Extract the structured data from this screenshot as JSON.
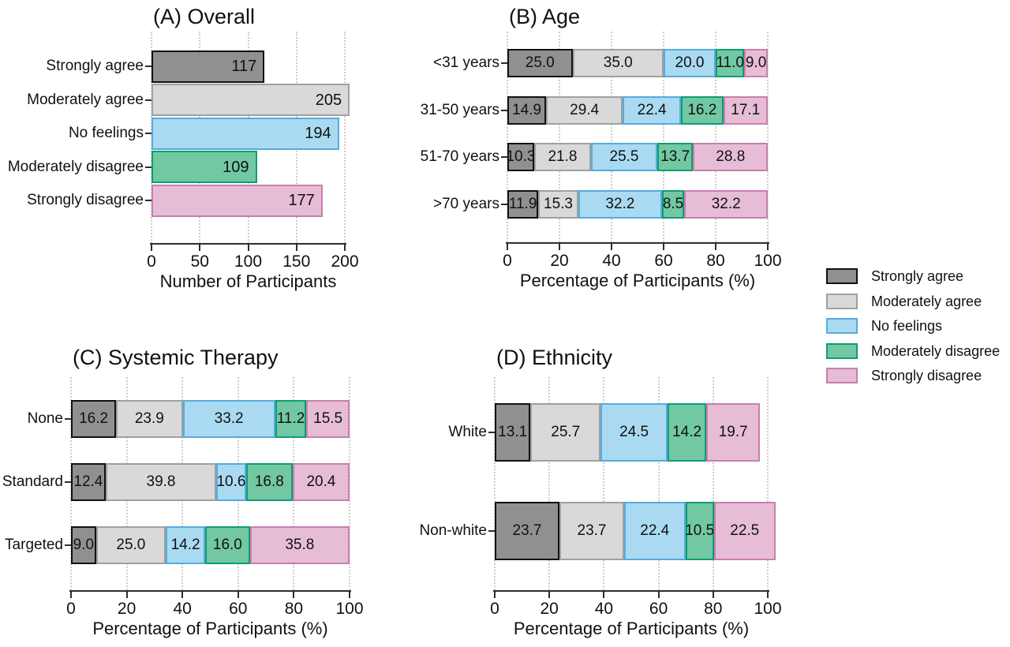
{
  "figure": {
    "legend": {
      "items": [
        {
          "label": "Strongly agree",
          "key": "strongly_agree"
        },
        {
          "label": "Moderately agree",
          "key": "moderately_agree"
        },
        {
          "label": "No feelings",
          "key": "no_feelings"
        },
        {
          "label": "Moderately disagree",
          "key": "moderately_disagree"
        },
        {
          "label": "Strongly disagree",
          "key": "strongly_disagree"
        }
      ]
    },
    "colors": {
      "strongly_agree": {
        "fill": "#909090",
        "border": "#111111"
      },
      "moderately_agree": {
        "fill": "#d9d9d9",
        "border": "#a0a0a0"
      },
      "no_feelings": {
        "fill": "#aadaf1",
        "border": "#55acdc"
      },
      "moderately_disagree": {
        "fill": "#72c8a3",
        "border": "#0e9d72"
      },
      "strongly_disagree": {
        "fill": "#e7bdd6",
        "border": "#c77fae"
      }
    }
  },
  "chart_data": [
    {
      "id": "A",
      "type": "bar",
      "title": "(A) Overall",
      "xlabel": "Number of Participants",
      "xlim": [
        0,
        200
      ],
      "xticks": [
        0,
        50,
        100,
        150,
        200
      ],
      "categories": [
        "Strongly agree",
        "Moderately agree",
        "No feelings",
        "Moderately disagree",
        "Strongly disagree"
      ],
      "values": [
        117,
        205,
        194,
        109,
        177
      ],
      "color_keys": [
        "strongly_agree",
        "moderately_agree",
        "no_feelings",
        "moderately_disagree",
        "strongly_disagree"
      ],
      "grid": true,
      "legend_position": "right-outside"
    },
    {
      "id": "B",
      "type": "stacked_bar",
      "title": "(B) Age",
      "xlabel": "Percentage of Participants (%)",
      "xlim": [
        0,
        100
      ],
      "xticks": [
        0,
        20,
        40,
        60,
        80,
        100
      ],
      "categories": [
        "<31 years",
        "31-50 years",
        "51-70 years",
        ">70 years"
      ],
      "series": [
        {
          "name": "Strongly agree",
          "key": "strongly_agree",
          "values": [
            25.0,
            14.9,
            10.3,
            11.9
          ]
        },
        {
          "name": "Moderately agree",
          "key": "moderately_agree",
          "values": [
            35.0,
            29.4,
            21.8,
            15.3
          ]
        },
        {
          "name": "No feelings",
          "key": "no_feelings",
          "values": [
            20.0,
            22.4,
            25.5,
            32.2
          ]
        },
        {
          "name": "Moderately disagree",
          "key": "moderately_disagree",
          "values": [
            11.0,
            16.2,
            13.7,
            8.5
          ]
        },
        {
          "name": "Strongly disagree",
          "key": "strongly_disagree",
          "values": [
            9.0,
            17.1,
            28.8,
            32.2
          ]
        }
      ],
      "grid": true
    },
    {
      "id": "C",
      "type": "stacked_bar",
      "title": "(C) Systemic Therapy",
      "xlabel": "Percentage of Participants (%)",
      "xlim": [
        0,
        100
      ],
      "xticks": [
        0,
        20,
        40,
        60,
        80,
        100
      ],
      "categories": [
        "None",
        "Standard",
        "Targeted"
      ],
      "series": [
        {
          "name": "Strongly agree",
          "key": "strongly_agree",
          "values": [
            16.2,
            12.4,
            9.0
          ]
        },
        {
          "name": "Moderately agree",
          "key": "moderately_agree",
          "values": [
            23.9,
            39.8,
            25.0
          ]
        },
        {
          "name": "No feelings",
          "key": "no_feelings",
          "values": [
            33.2,
            10.6,
            14.2
          ]
        },
        {
          "name": "Moderately disagree",
          "key": "moderately_disagree",
          "values": [
            11.2,
            16.8,
            16.0
          ]
        },
        {
          "name": "Strongly disagree",
          "key": "strongly_disagree",
          "values": [
            15.5,
            20.4,
            35.8
          ]
        }
      ],
      "grid": true
    },
    {
      "id": "D",
      "type": "stacked_bar",
      "title": "(D) Ethnicity",
      "xlabel": "Percentage of Participants (%)",
      "xlim": [
        0,
        100
      ],
      "xticks": [
        0,
        20,
        40,
        60,
        80,
        100
      ],
      "categories": [
        "White",
        "Non-white"
      ],
      "series": [
        {
          "name": "Strongly agree",
          "key": "strongly_agree",
          "values": [
            13.1,
            23.7
          ]
        },
        {
          "name": "Moderately agree",
          "key": "moderately_agree",
          "values": [
            25.7,
            23.7
          ]
        },
        {
          "name": "No feelings",
          "key": "no_feelings",
          "values": [
            24.5,
            22.4
          ]
        },
        {
          "name": "Moderately disagree",
          "key": "moderately_disagree",
          "values": [
            14.2,
            10.5
          ]
        },
        {
          "name": "Strongly disagree",
          "key": "strongly_disagree",
          "values": [
            19.7,
            22.5
          ]
        }
      ],
      "grid": true
    }
  ]
}
